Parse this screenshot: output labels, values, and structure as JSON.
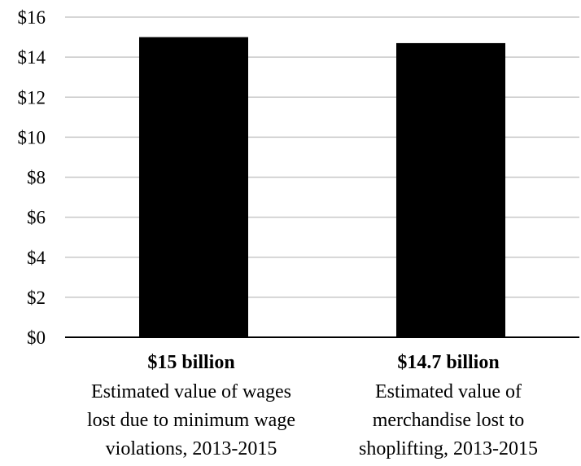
{
  "chart_data": {
    "type": "bar",
    "categories": [
      {
        "value_label": "$15 billion",
        "description": [
          "Estimated value of wages",
          "lost due to minimum wage",
          "violations, 2013-2015"
        ]
      },
      {
        "value_label": "$14.7 billion",
        "description": [
          "Estimated value of",
          "merchandise lost to",
          "shoplifting, 2013-2015"
        ]
      }
    ],
    "values": [
      15,
      14.7
    ],
    "ylim": [
      0,
      16
    ],
    "yticks": [
      0,
      2,
      4,
      6,
      8,
      10,
      12,
      14,
      16
    ],
    "ytick_labels": [
      "$0",
      "$2",
      "$4",
      "$6",
      "$8",
      "$10",
      "$12",
      "$14",
      "$16"
    ],
    "grid": true,
    "legend": "none"
  },
  "colors": {
    "bar": "#000000",
    "grid": "#c8c8c8",
    "axis": "#000000",
    "text": "#000000",
    "background": "#ffffff"
  }
}
